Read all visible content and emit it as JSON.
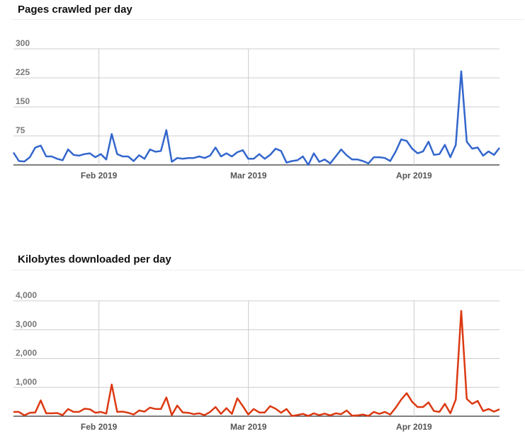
{
  "chart_data": [
    {
      "type": "line",
      "title": "Pages crawled per day",
      "xlabel": "",
      "ylabel": "",
      "x_start": "2019-01-16",
      "x_end": "2019-04-17",
      "x_ticks": [
        {
          "date": "2019-02-01",
          "label": "Feb 2019"
        },
        {
          "date": "2019-03-01",
          "label": "Mar 2019"
        },
        {
          "date": "2019-04-01",
          "label": "Apr 2019"
        }
      ],
      "y_ticks": [
        0,
        75,
        150,
        225,
        300
      ],
      "y_tick_labels": [
        "",
        "75",
        "150",
        "225",
        "300"
      ],
      "ylim": [
        0,
        300
      ],
      "grid": true,
      "color": "#3366cc",
      "series": [
        {
          "values": [
            32,
            10,
            9,
            20,
            45,
            50,
            22,
            22,
            16,
            12,
            40,
            26,
            24,
            28,
            30,
            20,
            28,
            14,
            80,
            28,
            22,
            22,
            10,
            25,
            16,
            40,
            34,
            36,
            90,
            8,
            18,
            16,
            18,
            18,
            22,
            18,
            24,
            45,
            22,
            30,
            22,
            33,
            38,
            16,
            16,
            28,
            16,
            26,
            42,
            36,
            6,
            10,
            12,
            22,
            0,
            30,
            8,
            14,
            4,
            22,
            40,
            25,
            14,
            14,
            10,
            4,
            20,
            20,
            18,
            10,
            35,
            66,
            62,
            42,
            30,
            35,
            60,
            26,
            28,
            52,
            20,
            52,
            242,
            60,
            42,
            45,
            24,
            35,
            26,
            44
          ]
        }
      ]
    },
    {
      "type": "line",
      "title": "Kilobytes downloaded per day",
      "xlabel": "",
      "ylabel": "",
      "x_start": "2019-01-16",
      "x_end": "2019-04-17",
      "x_ticks": [
        {
          "date": "2019-02-01",
          "label": "Feb 2019"
        },
        {
          "date": "2019-03-01",
          "label": "Mar 2019"
        },
        {
          "date": "2019-04-01",
          "label": "Apr 2019"
        }
      ],
      "y_ticks": [
        0,
        1000,
        2000,
        3000,
        4000
      ],
      "y_tick_labels": [
        "",
        "1,000",
        "2,000",
        "3,000",
        "4,000"
      ],
      "ylim": [
        0,
        4000
      ],
      "grid": true,
      "color": "#dc3912",
      "series": [
        {
          "values": [
            150,
            150,
            30,
            120,
            130,
            550,
            100,
            100,
            110,
            40,
            250,
            150,
            150,
            260,
            240,
            120,
            150,
            90,
            1100,
            150,
            160,
            120,
            60,
            200,
            160,
            300,
            250,
            250,
            650,
            40,
            370,
            130,
            120,
            70,
            100,
            40,
            150,
            320,
            80,
            280,
            80,
            620,
            350,
            60,
            250,
            130,
            130,
            350,
            260,
            120,
            250,
            10,
            40,
            80,
            10,
            100,
            40,
            90,
            30,
            100,
            70,
            200,
            20,
            30,
            60,
            10,
            150,
            80,
            150,
            60,
            300,
            580,
            800,
            500,
            320,
            320,
            480,
            180,
            150,
            430,
            100,
            580,
            3650,
            600,
            430,
            530,
            180,
            250,
            160,
            240
          ]
        }
      ]
    }
  ]
}
